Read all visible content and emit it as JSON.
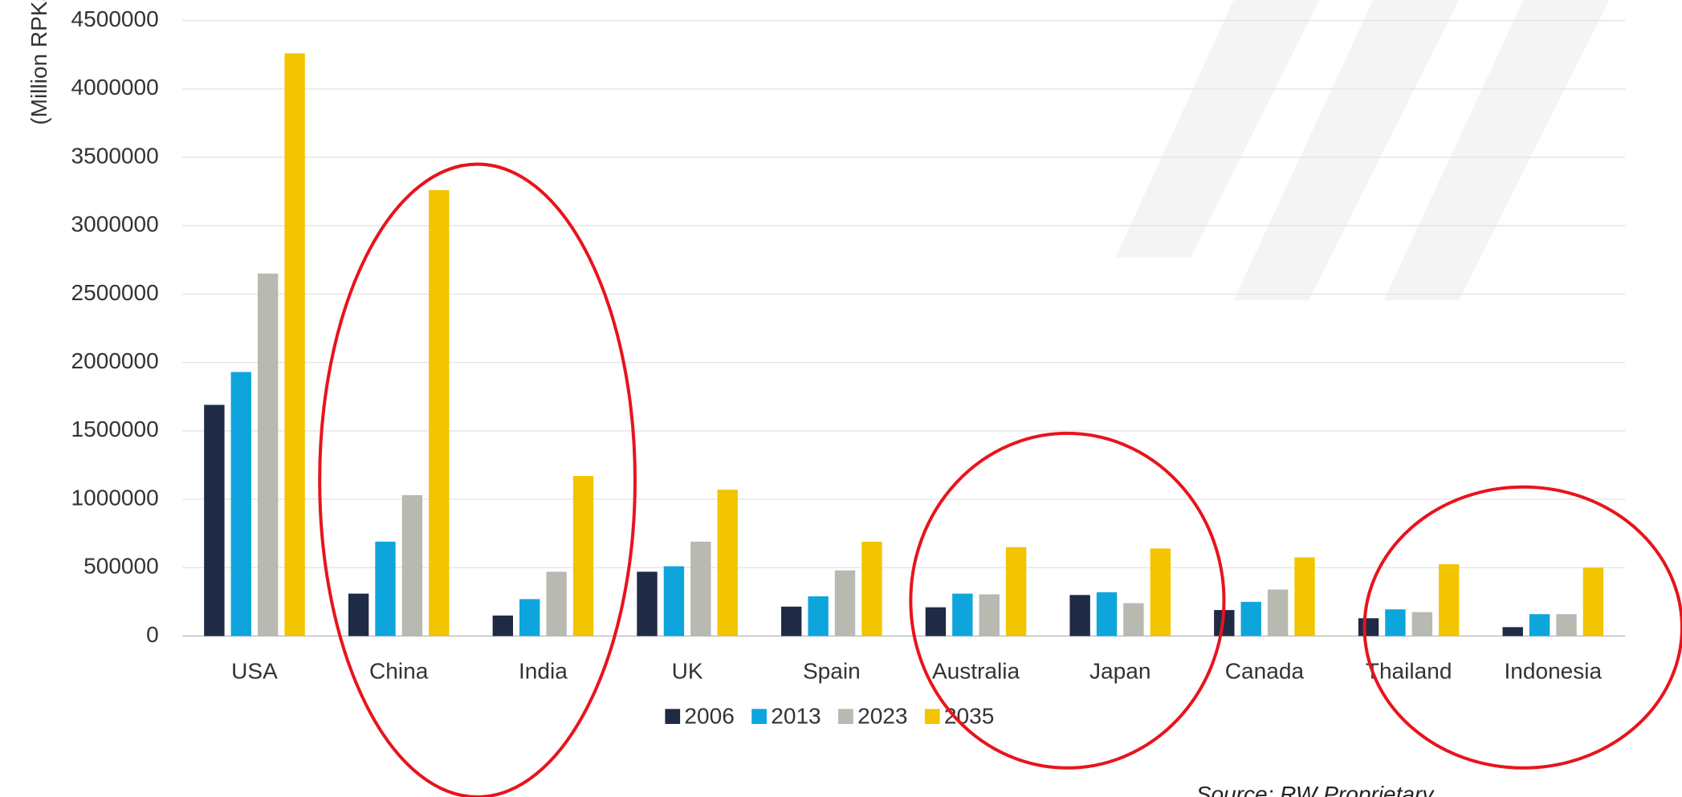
{
  "chart_data": {
    "type": "bar",
    "y_label": "(Million RPKs)",
    "source": "Source: RW Proprietary",
    "categories": [
      "USA",
      "China",
      "India",
      "UK",
      "Spain",
      "Australia",
      "Japan",
      "Canada",
      "Thailand",
      "Indonesia"
    ],
    "series": [
      {
        "name": "2006",
        "color": "#1f2a44",
        "values": [
          1690000,
          310000,
          150000,
          470000,
          215000,
          210000,
          300000,
          190000,
          130000,
          65000
        ]
      },
      {
        "name": "2013",
        "color": "#0ea5dd",
        "values": [
          1930000,
          690000,
          270000,
          510000,
          290000,
          310000,
          320000,
          250000,
          195000,
          160000
        ]
      },
      {
        "name": "2023",
        "color": "#b8b9b1",
        "values": [
          2650000,
          1030000,
          470000,
          690000,
          480000,
          305000,
          240000,
          340000,
          175000,
          160000
        ]
      },
      {
        "name": "2035",
        "color": "#f2c500",
        "values": [
          4260000,
          3260000,
          1170000,
          1070000,
          690000,
          650000,
          640000,
          575000,
          525000,
          500000
        ]
      }
    ],
    "ylim": [
      0,
      4500000
    ],
    "yticks": [
      0,
      500000,
      1000000,
      1500000,
      2000000,
      2500000,
      3000000,
      3500000,
      4000000,
      4500000
    ],
    "grid": true,
    "legend": "bottom"
  }
}
